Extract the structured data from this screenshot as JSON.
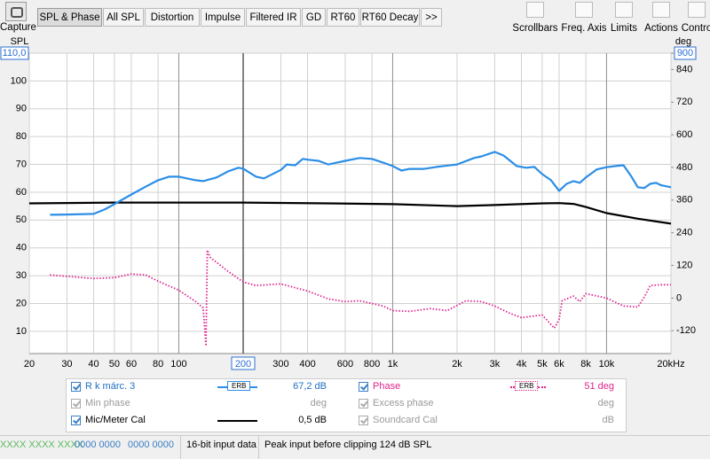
{
  "toolbar": {
    "capture": "Capture",
    "tabs": [
      "SPL & Phase",
      "All SPL",
      "Distortion",
      "Impulse",
      "Filtered IR",
      "GD",
      "RT60",
      "RT60 Decay",
      ">>"
    ],
    "tools": [
      "Scrollbars",
      "Freq. Axis",
      "Limits",
      "Actions",
      "Contro"
    ]
  },
  "chart_data": {
    "type": "line",
    "y_label": "SPL",
    "y2_label": "deg",
    "x_log": true,
    "grid": true,
    "cursor": 200,
    "xlim": [
      20,
      20000
    ],
    "xticks": [
      20,
      30,
      40,
      50,
      60,
      80,
      100,
      200,
      300,
      400,
      600,
      800,
      {
        "value": 1000,
        "label": "1k"
      },
      {
        "value": 2000,
        "label": "2k"
      },
      {
        "value": 3000,
        "label": "3k"
      },
      {
        "value": 4000,
        "label": "4k"
      },
      {
        "value": 5000,
        "label": "5k"
      },
      {
        "value": 6000,
        "label": "6k"
      },
      {
        "value": 8000,
        "label": "8k"
      },
      {
        "value": 10000,
        "label": "10k"
      },
      {
        "value": 20000,
        "label": "20kHz"
      }
    ],
    "ylim": [
      2,
      110
    ],
    "yticks": [
      {
        "value": 110,
        "label": "110,0"
      },
      100,
      90,
      80,
      70,
      60,
      50,
      40,
      30,
      20,
      10
    ],
    "y2lim": [
      -204,
      900
    ],
    "y2ticks": [
      900,
      840,
      720,
      600,
      480,
      360,
      240,
      120,
      0,
      -120
    ],
    "series": [
      {
        "name": "R k márc. 3",
        "color": "#2b8ee6",
        "style": "solid",
        "smoothing": "ERB",
        "readout": "67,2 dB",
        "x": [
          25,
          30,
          40,
          45,
          50,
          60,
          70,
          80,
          90,
          100,
          120,
          130,
          150,
          170,
          190,
          200,
          230,
          250,
          300,
          320,
          350,
          380,
          400,
          450,
          500,
          600,
          700,
          800,
          900,
          1000,
          1100,
          1200,
          1400,
          1600,
          2000,
          2400,
          2600,
          3000,
          3300,
          3800,
          4200,
          4600,
          5000,
          5500,
          6000,
          6500,
          7000,
          7500,
          8000,
          9000,
          10000,
          11000,
          12000,
          13000,
          14000,
          15000,
          16000,
          17000,
          18000,
          20000
        ],
        "values": [
          51.9,
          52,
          52.2,
          53.8,
          55.7,
          59.2,
          62,
          64.3,
          65.6,
          65.6,
          64.3,
          64,
          65.3,
          67.5,
          68.8,
          68.5,
          65.6,
          65,
          68,
          70,
          69.7,
          72,
          71.7,
          71.3,
          70,
          71.3,
          72.3,
          72,
          70.7,
          69.4,
          67.8,
          68.4,
          68.4,
          69.1,
          70,
          72.3,
          72.9,
          74.5,
          73.2,
          69.4,
          68.8,
          69.1,
          66.5,
          64.3,
          60.5,
          63,
          64,
          63.4,
          65.3,
          68.2,
          69,
          69.4,
          69.7,
          65.9,
          61.8,
          61.5,
          63,
          63.4,
          62.5,
          61.8
        ]
      },
      {
        "name": "Mic/Meter Cal",
        "color": "#000000",
        "style": "solid",
        "readout": "0,5 dB",
        "x": [
          20,
          50,
          100,
          200,
          500,
          1000,
          2000,
          3000,
          5000,
          6000,
          7000,
          8000,
          10000,
          14000,
          20000
        ],
        "values": [
          56,
          56.3,
          56.3,
          56.3,
          56,
          55.7,
          55,
          55.4,
          56,
          56.1,
          55.8,
          54.7,
          52.5,
          50.5,
          48.7
        ]
      },
      {
        "name": "Phase",
        "color": "#e0238c",
        "style": "dotted",
        "axis": "y2",
        "smoothing": "ERB",
        "readout": "51 deg",
        "x": [
          25,
          40,
          50,
          60,
          70,
          80,
          100,
          120,
          130,
          134,
          136,
          140,
          170,
          200,
          230,
          300,
          400,
          500,
          600,
          700,
          900,
          1000,
          1200,
          1500,
          1800,
          2200,
          2600,
          3000,
          3500,
          4000,
          5000,
          5700,
          6000,
          6200,
          7000,
          7500,
          8000,
          10000,
          12000,
          14000,
          15000,
          16000,
          18000,
          20000
        ],
        "values": [
          85,
          72,
          75,
          88,
          85,
          62,
          29,
          -13,
          -36,
          -176,
          176,
          150,
          98,
          59,
          46,
          52,
          26,
          -3,
          -13,
          -10,
          -29,
          -46,
          -49,
          -39,
          -46,
          -10,
          -13,
          -29,
          -55,
          -72,
          -62,
          -111,
          -78,
          -10,
          7,
          -13,
          16,
          0,
          -29,
          -33,
          3,
          46,
          49,
          49
        ]
      }
    ]
  },
  "legend_panel": {
    "inactive": [
      {
        "name": "Min phase",
        "unit": "deg"
      },
      {
        "name": "Excess phase",
        "unit": "deg"
      },
      {
        "name": "Soundcard Cal",
        "unit": "dB"
      }
    ]
  },
  "status": [
    "XXXX XXXX XXXX",
    "0000 0000",
    "0000 0000",
    "16-bit input data",
    "Peak input before clipping 124 dB SPL"
  ]
}
